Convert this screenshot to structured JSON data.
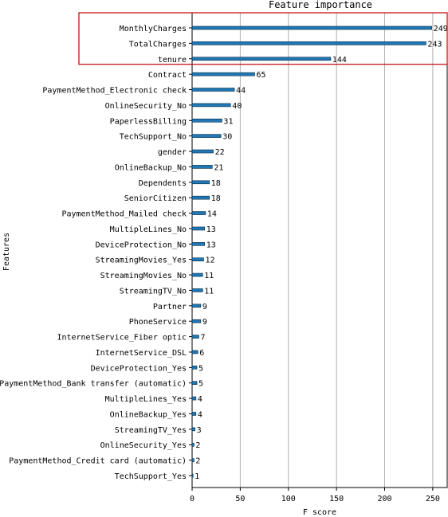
{
  "chart_data": {
    "type": "bar",
    "orientation": "horizontal",
    "title": "Feature importance",
    "xlabel": "F score",
    "ylabel": "Features",
    "xlim": [
      0,
      265
    ],
    "xticks": [
      0,
      50,
      100,
      150,
      200,
      250
    ],
    "grid": true,
    "bar_color": "#1f77b4",
    "highlight_box_color": "#c00000",
    "highlighted_categories": [
      "MonthlyCharges",
      "TotalCharges",
      "tenure"
    ],
    "categories": [
      "MonthlyCharges",
      "TotalCharges",
      "tenure",
      "Contract",
      "PaymentMethod_Electronic check",
      "OnlineSecurity_No",
      "PaperlessBilling",
      "TechSupport_No",
      "gender",
      "OnlineBackup_No",
      "Dependents",
      "SeniorCitizen",
      "PaymentMethod_Mailed check",
      "MultipleLines_No",
      "DeviceProtection_No",
      "StreamingMovies_Yes",
      "StreamingMovies_No",
      "StreamingTV_No",
      "Partner",
      "PhoneService",
      "InternetService_Fiber optic",
      "InternetService_DSL",
      "DeviceProtection_Yes",
      "PaymentMethod_Bank transfer (automatic)",
      "MultipleLines_Yes",
      "OnlineBackup_Yes",
      "StreamingTV_Yes",
      "OnlineSecurity_Yes",
      "PaymentMethod_Credit card (automatic)",
      "TechSupport_Yes"
    ],
    "values": [
      249,
      243,
      144,
      65,
      44,
      40,
      31,
      30,
      22,
      21,
      18,
      18,
      14,
      13,
      13,
      12,
      11,
      11,
      9,
      9,
      7,
      6,
      5,
      5,
      4,
      4,
      3,
      2,
      2,
      1
    ]
  }
}
